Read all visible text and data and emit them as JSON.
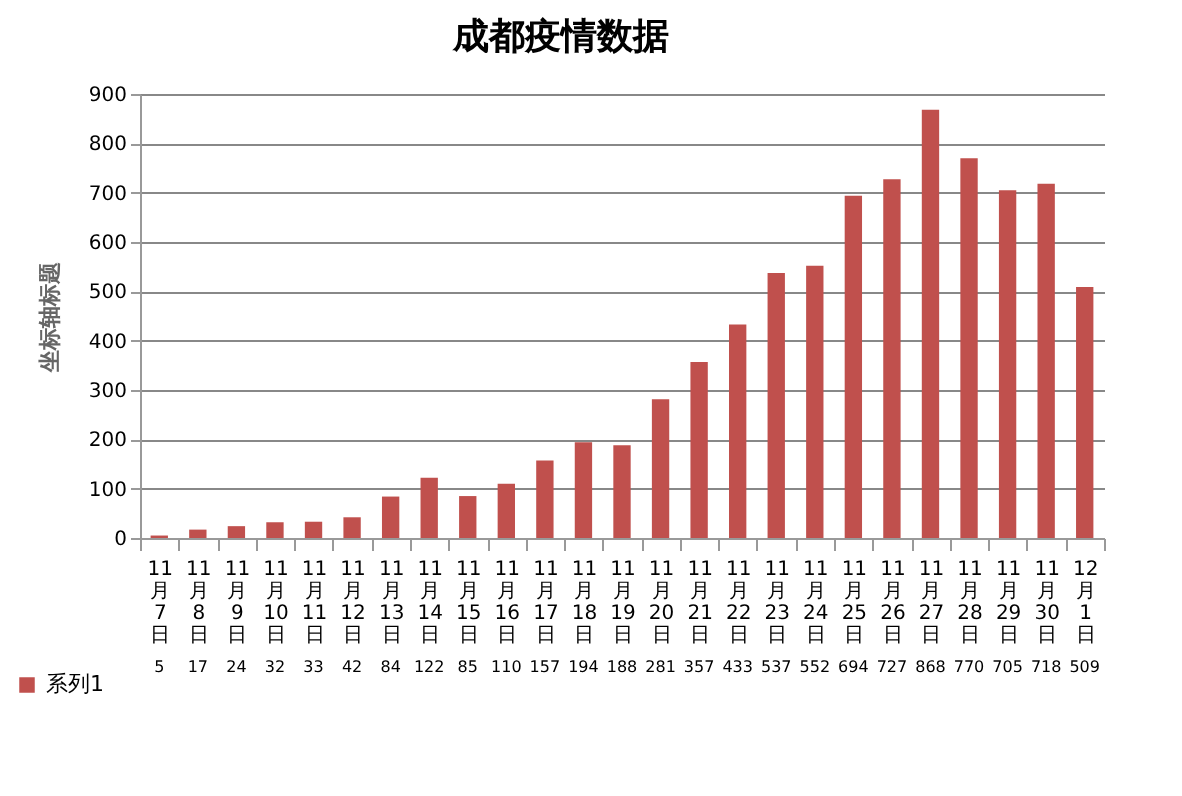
{
  "chart_data": {
    "type": "bar",
    "title": "成都疫情数据",
    "ylabel": "坐标轴标题",
    "categories": [
      "11月7日",
      "11月8日",
      "11月9日",
      "11月10日",
      "11月11日",
      "11月12日",
      "11月13日",
      "11月14日",
      "11月15日",
      "11月16日",
      "11月17日",
      "11月18日",
      "11月19日",
      "11月20日",
      "11月21日",
      "11月22日",
      "11月23日",
      "11月24日",
      "11月25日",
      "11月26日",
      "11月27日",
      "11月28日",
      "11月29日",
      "11月30日",
      "12月1日"
    ],
    "series": [
      {
        "name": "系列1",
        "color": "#c0504d",
        "values": [
          5,
          17,
          24,
          32,
          33,
          42,
          84,
          122,
          85,
          110,
          157,
          194,
          188,
          281,
          357,
          433,
          537,
          552,
          694,
          727,
          868,
          770,
          705,
          718,
          509
        ]
      }
    ],
    "ylim": [
      0,
      900
    ],
    "yticks": [
      0,
      100,
      200,
      300,
      400,
      500,
      600,
      700,
      800,
      900
    ],
    "grid": "y",
    "data_labels": true,
    "legend": "bottom left"
  }
}
